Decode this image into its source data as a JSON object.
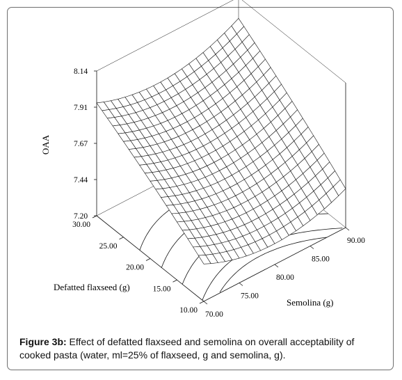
{
  "chart_data": {
    "type": "surface",
    "zlabel": "OAA",
    "xlabel": "Semolina (g)",
    "ylabel": "Defatted flaxseed (g)",
    "xlim": [
      70,
      90
    ],
    "ylim": [
      10,
      30
    ],
    "zlim": [
      7.2,
      8.14
    ],
    "x_ticks": [
      "70.00",
      "75.00",
      "80.00",
      "85.00",
      "90.00"
    ],
    "y_ticks": [
      "10.00",
      "15.00",
      "20.00",
      "25.00",
      "30.00"
    ],
    "z_ticks": [
      "7.20",
      "7.44",
      "7.67",
      "7.91",
      "8.14"
    ],
    "grid_size": 21,
    "surface_samples": [
      {
        "semolina": 70,
        "flaxseed": 10,
        "oaa": 7.33
      },
      {
        "semolina": 90,
        "flaxseed": 10,
        "oaa": 7.46
      },
      {
        "semolina": 70,
        "flaxseed": 30,
        "oaa": 7.83
      },
      {
        "semolina": 90,
        "flaxseed": 30,
        "oaa": 8.07
      }
    ],
    "contour_base": true
  },
  "caption": {
    "label": "Figure 3b:",
    "text": " Effect of defatted flaxseed and semolina on overall acceptability of cooked pasta (water, ml=25% of flaxseed, g and semolina, g)."
  }
}
